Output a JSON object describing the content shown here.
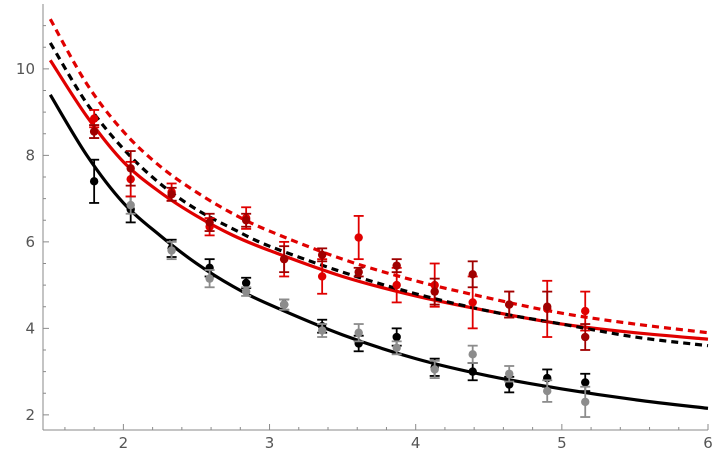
{
  "chart_data": {
    "type": "scatter",
    "xlim": [
      1.45,
      6.0
    ],
    "ylim": [
      1.65,
      11.5
    ],
    "x_ticks": [
      "2",
      "3",
      "4",
      "5",
      "6"
    ],
    "y_ticks": [
      "2",
      "4",
      "6",
      "8",
      "10"
    ],
    "grid": false,
    "legend": "none",
    "curves": [
      {
        "style": "solid",
        "color": "#000000",
        "x": [
          1.5,
          1.75,
          2.0,
          2.25,
          2.5,
          2.75,
          3.0,
          3.5,
          4.0,
          4.5,
          5.0,
          5.5,
          6.0
        ],
        "y": [
          9.4,
          8.0,
          6.9,
          6.15,
          5.5,
          4.97,
          4.55,
          3.85,
          3.3,
          2.9,
          2.6,
          2.35,
          2.15
        ]
      },
      {
        "style": "solid",
        "color": "#e00000",
        "x": [
          1.5,
          1.75,
          2.0,
          2.25,
          2.5,
          2.75,
          3.0,
          3.5,
          4.0,
          4.5,
          5.0,
          5.5,
          6.0
        ],
        "y": [
          10.2,
          8.9,
          7.85,
          7.15,
          6.6,
          6.15,
          5.8,
          5.2,
          4.75,
          4.4,
          4.1,
          3.9,
          3.75
        ]
      },
      {
        "style": "dashed",
        "color": "#000000",
        "x": [
          1.5,
          1.75,
          2.0,
          2.25,
          2.5,
          2.75,
          3.0,
          3.5,
          4.0,
          4.5,
          5.0,
          5.5,
          6.0
        ],
        "y": [
          10.6,
          9.2,
          8.15,
          7.35,
          6.75,
          6.3,
          5.9,
          5.3,
          4.8,
          4.4,
          4.1,
          3.8,
          3.6
        ]
      },
      {
        "style": "dashed",
        "color": "#e00000",
        "x": [
          1.5,
          1.75,
          2.0,
          2.25,
          2.5,
          2.75,
          3.0,
          3.5,
          4.0,
          4.5,
          5.0,
          5.5,
          6.0
        ],
        "y": [
          11.15,
          9.65,
          8.55,
          7.75,
          7.15,
          6.65,
          6.25,
          5.6,
          5.1,
          4.7,
          4.35,
          4.1,
          3.9
        ]
      }
    ],
    "series": [
      {
        "color": "#000000",
        "x": [
          1.8,
          2.05,
          2.33,
          2.59,
          2.84,
          3.1,
          3.36,
          3.61,
          3.87,
          4.13,
          4.39,
          4.64,
          4.9,
          5.16
        ],
        "y": [
          7.4,
          6.75,
          5.85,
          5.4,
          5.05,
          4.55,
          4.05,
          3.65,
          3.8,
          3.1,
          3.0,
          2.7,
          2.85,
          2.75
        ],
        "err": [
          0.5,
          0.3,
          0.2,
          0.2,
          0.12,
          0.12,
          0.15,
          0.18,
          0.2,
          0.2,
          0.2,
          0.18,
          0.2,
          0.2
        ]
      },
      {
        "color": "#8c8c8c",
        "x": [
          1.8,
          2.05,
          2.33,
          2.59,
          2.84,
          3.1,
          3.36,
          3.61,
          3.87,
          4.13,
          4.39,
          4.64,
          4.9,
          5.16
        ],
        "y": [
          8.55,
          6.85,
          5.8,
          5.15,
          4.85,
          4.55,
          3.95,
          3.9,
          3.55,
          3.05,
          3.4,
          2.95,
          2.55,
          2.3
        ],
        "err": [
          0.15,
          0.2,
          0.2,
          0.2,
          0.1,
          0.12,
          0.15,
          0.2,
          0.15,
          0.2,
          0.2,
          0.18,
          0.25,
          0.35
        ]
      },
      {
        "color": "#e00000",
        "x": [
          1.8,
          2.05,
          2.33,
          2.59,
          2.84,
          3.1,
          3.36,
          3.61,
          3.87,
          4.13,
          4.39,
          4.64,
          4.9,
          5.16
        ],
        "y": [
          8.85,
          7.45,
          7.15,
          6.35,
          6.55,
          5.6,
          5.2,
          6.1,
          5.0,
          5.0,
          4.6,
          4.55,
          4.45,
          4.4
        ],
        "err": [
          0.2,
          0.4,
          0.2,
          0.2,
          0.25,
          0.4,
          0.4,
          0.5,
          0.4,
          0.5,
          0.6,
          0.3,
          0.65,
          0.45
        ]
      },
      {
        "color": "#a00000",
        "x": [
          1.8,
          2.05,
          2.33,
          2.59,
          2.84,
          3.1,
          3.36,
          3.61,
          3.87,
          4.13,
          4.39,
          4.64,
          4.9,
          5.16
        ],
        "y": [
          8.55,
          7.7,
          7.1,
          6.45,
          6.5,
          5.6,
          5.7,
          5.3,
          5.45,
          4.85,
          5.25,
          4.55,
          4.5,
          3.8
        ],
        "err": [
          0.15,
          0.4,
          0.15,
          0.2,
          0.15,
          0.3,
          0.15,
          0.1,
          0.15,
          0.3,
          0.3,
          0.3,
          0.35,
          0.3
        ]
      }
    ]
  }
}
